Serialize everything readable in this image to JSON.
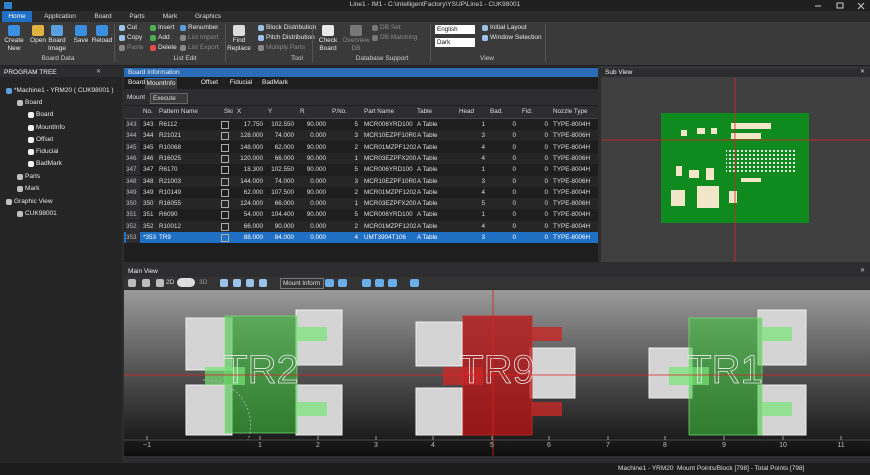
{
  "window": {
    "title": "Line1 - IM1 - C:\\intelligentFactory\\YSUP\\Line1 - CUK98001"
  },
  "ribbon": {
    "tabs": [
      "Home",
      "Application",
      "Board",
      "Parts",
      "Mark",
      "Graphics"
    ],
    "board_data": {
      "label": "Board Data",
      "buttons": [
        "Create New",
        "Open",
        "Board Image",
        "Save",
        "Reload"
      ]
    },
    "list_edit": {
      "label": "List Edit",
      "buttons": [
        "Cut",
        "Copy",
        "Paste",
        "Insert",
        "Add",
        "Delete",
        "Renumber",
        "List Import",
        "List Export"
      ]
    },
    "tool": {
      "label": "Tool",
      "find": "Find Replace",
      "buttons": [
        "Block Distribution",
        "Pitch Distribution",
        "Multiply Parts"
      ]
    },
    "database": {
      "label": "Database Support",
      "check": "Check Board",
      "overview": "Overview DB",
      "buttons": [
        "DB Set",
        "DB Matching"
      ]
    },
    "view": {
      "label": "View",
      "language": "English",
      "theme": "Dark",
      "buttons": [
        "Initial Layout",
        "Window Selection"
      ]
    }
  },
  "program_tree": {
    "title": "PROGRAM TREE",
    "items": [
      "*Machine1 - YRM20 ( CUK98001 )",
      "Board",
      "Board",
      "MountInfo",
      "Offset",
      "Fiducial",
      "BadMark",
      "Parts",
      "Mark",
      "Graphic View",
      "CUK98001"
    ]
  },
  "board_info": {
    "title": "Board Information",
    "tabs": [
      "Board",
      "MountInfo",
      "Offset",
      "Fiducial",
      "BadMark"
    ],
    "mount_label": "Mount",
    "mode": "Execute",
    "columns": [
      "No.",
      "Pattern Name",
      "Ski",
      "X",
      "Y",
      "R",
      "P.No.",
      "Part Name",
      "Table",
      "Head",
      "Bad.",
      "Fid.",
      "Nozzle Type"
    ],
    "rows": [
      [
        "343",
        "343",
        "R6112",
        "17.750",
        "102.550",
        "90.000",
        "5",
        "MCR006YRD100",
        "A Table",
        "1",
        "0",
        "0",
        "TYPE-8004H"
      ],
      [
        "344",
        "344",
        "R21021",
        "128.000",
        "74.000",
        "0.000",
        "3",
        "MCR10EZPF10R0",
        "A Table",
        "3",
        "0",
        "0",
        "TYPE-8006H"
      ],
      [
        "345",
        "345",
        "R10068",
        "148.000",
        "62.000",
        "90.000",
        "2",
        "MCR01MZPF1202",
        "A Table",
        "4",
        "0",
        "0",
        "TYPE-8004H"
      ],
      [
        "346",
        "346",
        "R16025",
        "120.000",
        "66.000",
        "90.000",
        "1",
        "MCR03EZPFX2001",
        "A Table",
        "4",
        "0",
        "0",
        "TYPE-8006H"
      ],
      [
        "347",
        "347",
        "R6170",
        "18.300",
        "102.550",
        "90.000",
        "5",
        "MCR006YRD100",
        "A Table",
        "1",
        "0",
        "0",
        "TYPE-8004H"
      ],
      [
        "348",
        "348",
        "R21003",
        "144.000",
        "74.000",
        "0.000",
        "3",
        "MCR10EZPF10R0",
        "A Table",
        "3",
        "0",
        "0",
        "TYPE-8006H"
      ],
      [
        "349",
        "349",
        "R10149",
        "62.000",
        "107.500",
        "90.000",
        "2",
        "MCR01MZPF1202",
        "A Table",
        "4",
        "0",
        "0",
        "TYPE-8004H"
      ],
      [
        "350",
        "350",
        "R16055",
        "124.000",
        "66.000",
        "0.000",
        "1",
        "MCR03EZPFX2001",
        "A Table",
        "5",
        "0",
        "0",
        "TYPE-8006H"
      ],
      [
        "351",
        "351",
        "R6090",
        "54.000",
        "104.400",
        "90.000",
        "5",
        "MCR006YRD100",
        "A Table",
        "1",
        "0",
        "0",
        "TYPE-8004H"
      ],
      [
        "352",
        "352",
        "R10012",
        "66.000",
        "90.000",
        "0.000",
        "2",
        "MCR01MZPF1202",
        "A Table",
        "4",
        "0",
        "0",
        "TYPE-8004H"
      ],
      [
        "353",
        "*353",
        "TR9",
        "88.000",
        "84.000",
        "0.000",
        "4",
        "UMT3904T106",
        "A Table",
        "3",
        "0",
        "0",
        "TYPE-8006H"
      ]
    ]
  },
  "sub_view": {
    "title": "Sub View"
  },
  "main_view": {
    "title": "Main View",
    "mode_2d": "2D",
    "mode_3d": "3D",
    "layer": "Mount Inform",
    "components": [
      "TR2",
      "TR9",
      "TR1"
    ],
    "ruler": [
      "−1",
      "1",
      "2",
      "3",
      "4",
      "5",
      "6",
      "7",
      "8",
      "9",
      "10",
      "11"
    ]
  },
  "status": {
    "machine": "Machine1 - YRM20",
    "points": "Mount Points/Block [798] - Total Points [798]"
  }
}
